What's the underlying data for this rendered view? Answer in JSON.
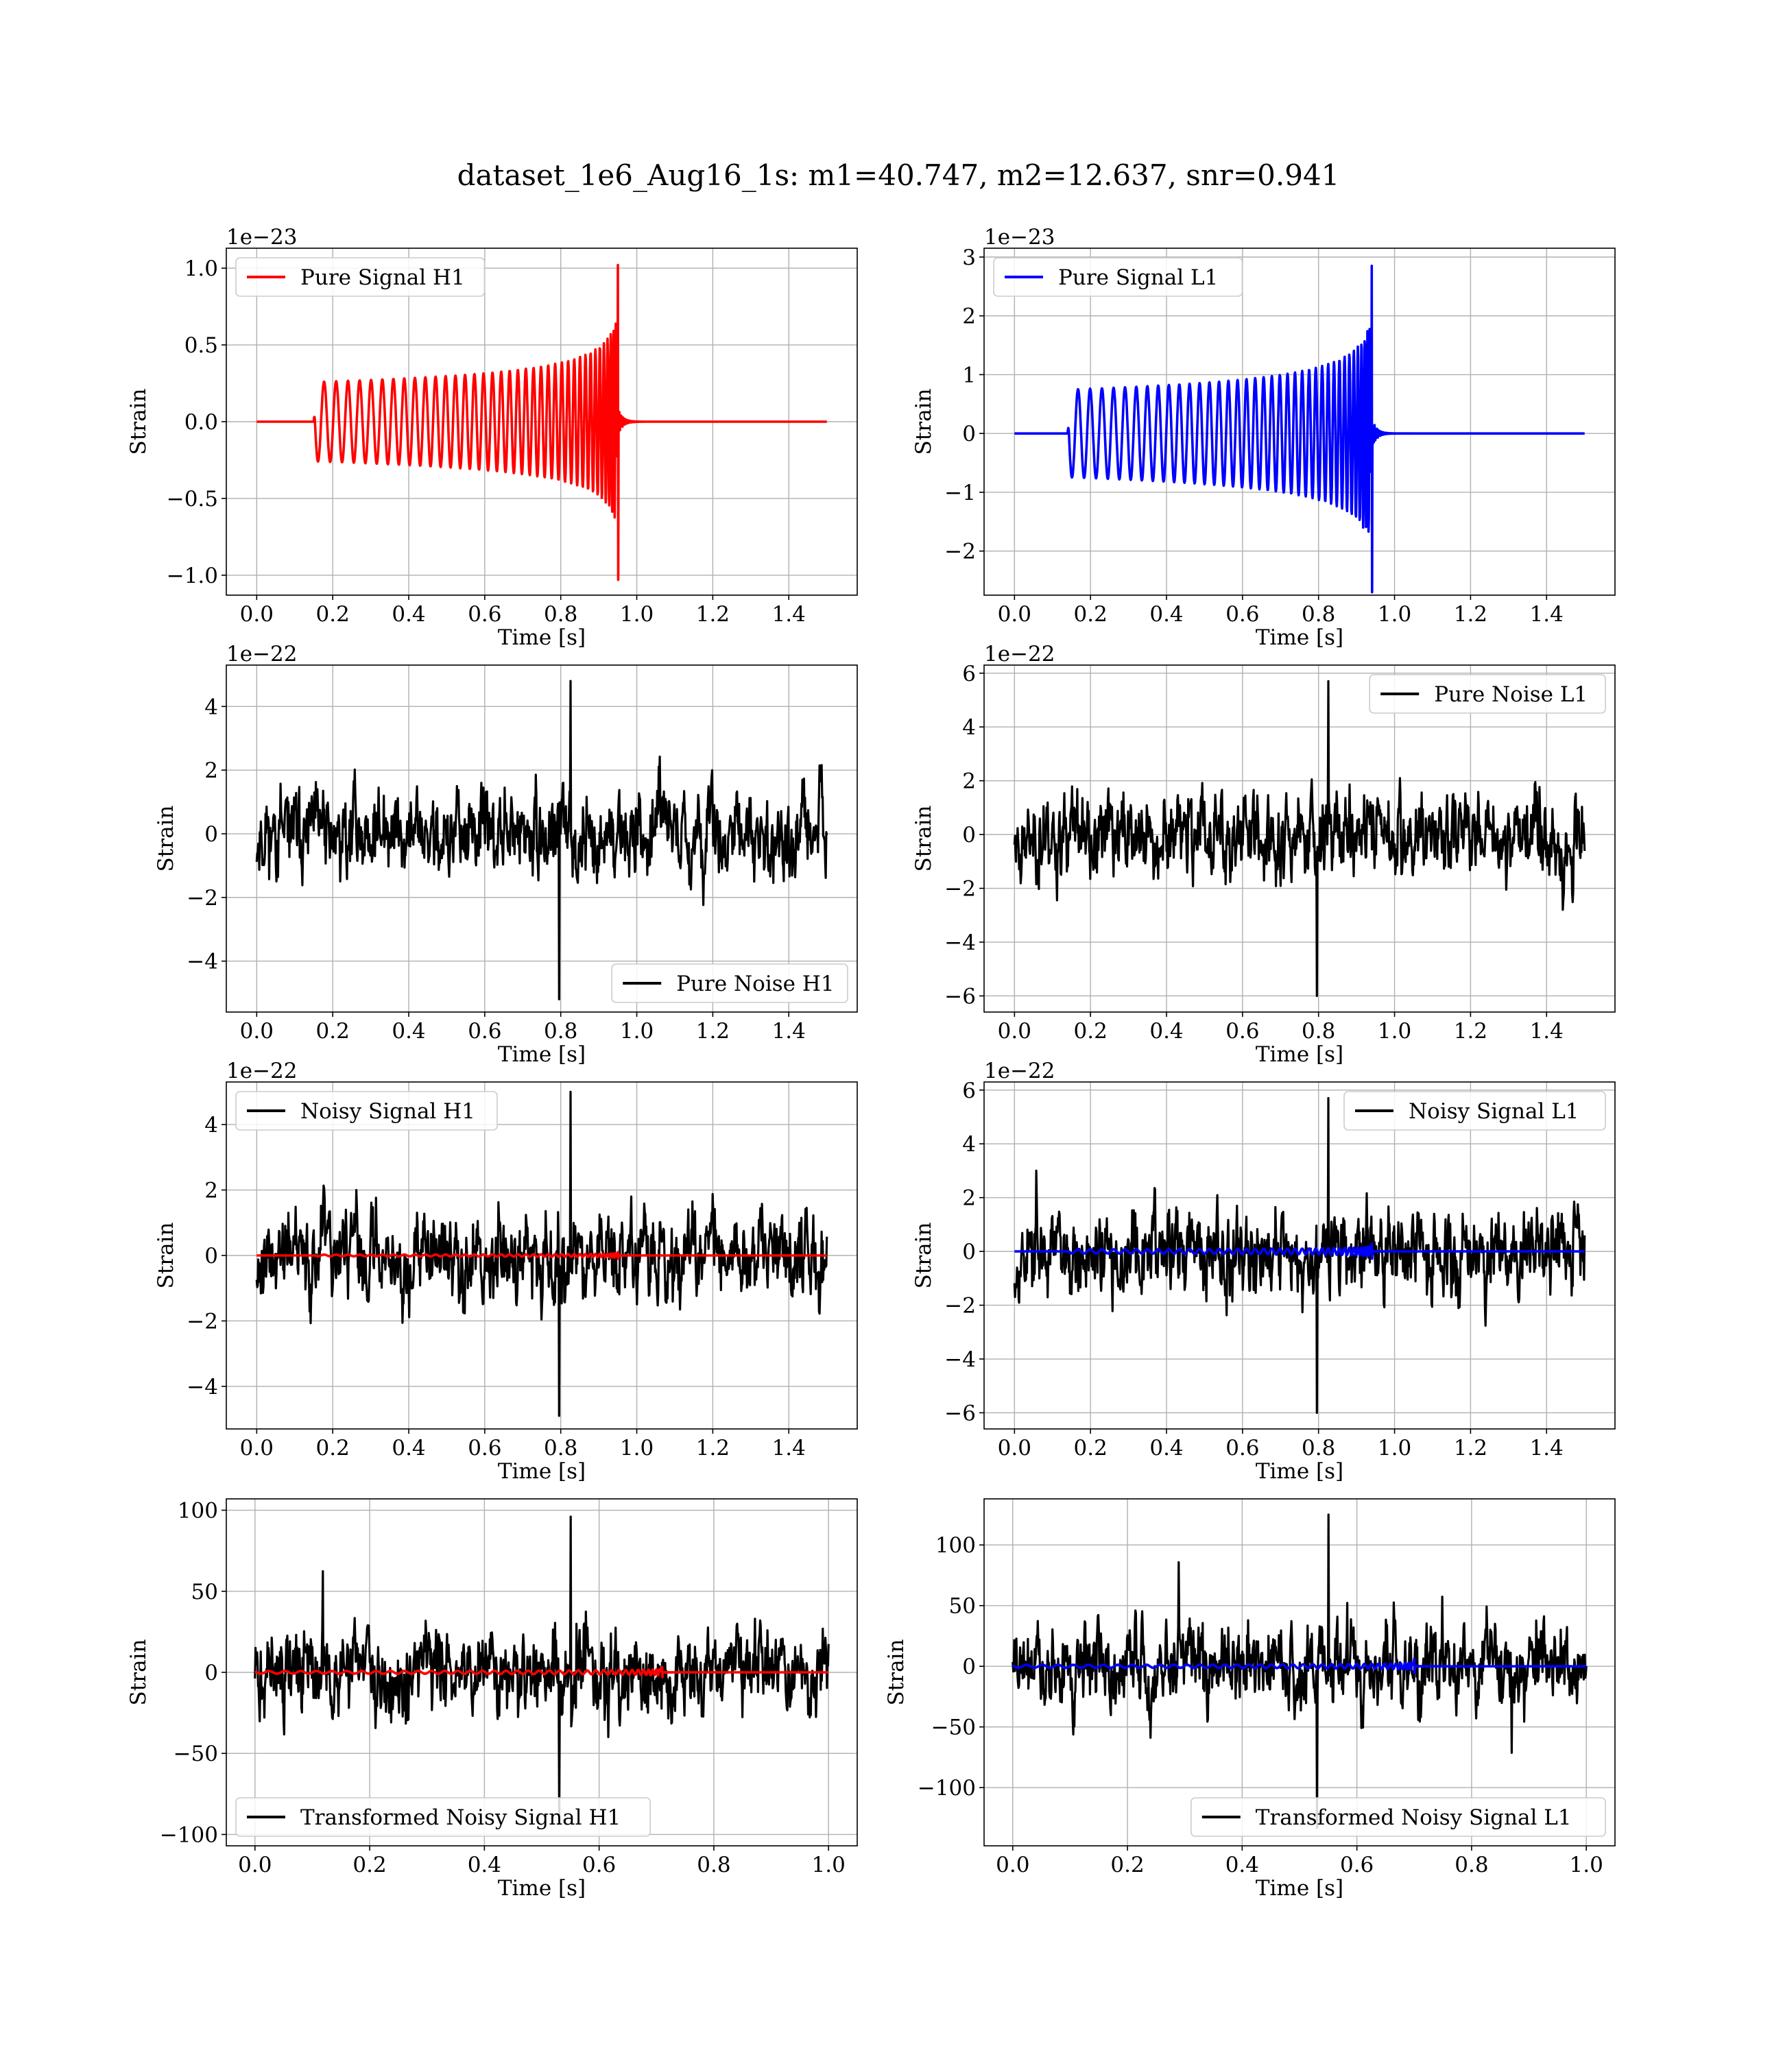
{
  "figure": {
    "suptitle": "dataset_1e6_Aug16_1s: m1=40.747, m2=12.637, snr=0.941"
  },
  "chart_data": [
    {
      "type": "line",
      "id": "pure-signal-h1",
      "xlabel": "Time [s]",
      "ylabel": "Strain",
      "offset_text": "1e−23",
      "xlim": [
        -0.08,
        1.58
      ],
      "ylim": [
        -1.13,
        1.13
      ],
      "xticks": [
        0.0,
        0.2,
        0.4,
        0.6,
        0.8,
        1.0,
        1.2,
        1.4
      ],
      "xticklabels": [
        "0.0",
        "0.2",
        "0.4",
        "0.6",
        "0.8",
        "1.0",
        "1.2",
        "1.4"
      ],
      "yticks": [
        -1.0,
        -0.5,
        0.0,
        0.5,
        1.0
      ],
      "yticklabels": [
        "−1.0",
        "−0.5",
        "0.0",
        "0.5",
        "1.0"
      ],
      "grid": true,
      "legend_loc": "upper-left",
      "series": [
        {
          "name": "Pure Signal H1",
          "color": "#ff0000",
          "kind": "chirp",
          "legend": true,
          "t_start": 0.15,
          "t_merge": 0.95,
          "t_end": 1.5,
          "amp_start": 0.26,
          "amp_peak": 1.02,
          "amp_min_peak": -1.03
        }
      ]
    },
    {
      "type": "line",
      "id": "pure-signal-l1",
      "xlabel": "Time [s]",
      "ylabel": "Strain",
      "offset_text": "1e−23",
      "xlim": [
        -0.08,
        1.58
      ],
      "ylim": [
        -2.75,
        3.15
      ],
      "xticks": [
        0.0,
        0.2,
        0.4,
        0.6,
        0.8,
        1.0,
        1.2,
        1.4
      ],
      "xticklabels": [
        "0.0",
        "0.2",
        "0.4",
        "0.6",
        "0.8",
        "1.0",
        "1.2",
        "1.4"
      ],
      "yticks": [
        -2,
        -1,
        0,
        1,
        2,
        3
      ],
      "yticklabels": [
        "−2",
        "−1",
        "0",
        "1",
        "2",
        "3"
      ],
      "grid": true,
      "legend_loc": "upper-left",
      "series": [
        {
          "name": "Pure Signal L1",
          "color": "#0000ff",
          "kind": "chirp",
          "legend": true,
          "t_start": 0.14,
          "t_merge": 0.94,
          "t_end": 1.5,
          "amp_start": 0.75,
          "amp_peak": 2.85,
          "amp_min_peak": -2.7
        }
      ]
    },
    {
      "type": "line",
      "id": "pure-noise-h1",
      "xlabel": "Time [s]",
      "ylabel": "Strain",
      "offset_text": "1e−22",
      "xlim": [
        -0.08,
        1.58
      ],
      "ylim": [
        -5.6,
        5.3
      ],
      "xticks": [
        0.0,
        0.2,
        0.4,
        0.6,
        0.8,
        1.0,
        1.2,
        1.4
      ],
      "xticklabels": [
        "0.0",
        "0.2",
        "0.4",
        "0.6",
        "0.8",
        "1.0",
        "1.2",
        "1.4"
      ],
      "yticks": [
        -4,
        -2,
        0,
        2,
        4
      ],
      "yticklabels": [
        "−4",
        "−2",
        "0",
        "2",
        "4"
      ],
      "grid": true,
      "legend_loc": "lower-right",
      "series": [
        {
          "name": "Pure Noise H1",
          "color": "#000000",
          "kind": "noise",
          "legend": true,
          "t_start": 0.0,
          "t_end": 1.5,
          "max": 4.8,
          "min": -5.2,
          "seed": 11
        }
      ]
    },
    {
      "type": "line",
      "id": "pure-noise-l1",
      "xlabel": "Time [s]",
      "ylabel": "Strain",
      "offset_text": "1e−22",
      "xlim": [
        -0.08,
        1.58
      ],
      "ylim": [
        -6.6,
        6.3
      ],
      "xticks": [
        0.0,
        0.2,
        0.4,
        0.6,
        0.8,
        1.0,
        1.2,
        1.4
      ],
      "xticklabels": [
        "0.0",
        "0.2",
        "0.4",
        "0.6",
        "0.8",
        "1.0",
        "1.2",
        "1.4"
      ],
      "yticks": [
        -6,
        -4,
        -2,
        0,
        2,
        4,
        6
      ],
      "yticklabels": [
        "−6",
        "−4",
        "−2",
        "0",
        "2",
        "4",
        "6"
      ],
      "grid": true,
      "legend_loc": "upper-right",
      "series": [
        {
          "name": "Pure Noise L1",
          "color": "#000000",
          "kind": "noise",
          "legend": true,
          "t_start": 0.0,
          "t_end": 1.5,
          "max": 5.7,
          "min": -6.0,
          "seed": 23
        }
      ]
    },
    {
      "type": "line",
      "id": "noisy-signal-h1",
      "xlabel": "Time [s]",
      "ylabel": "Strain",
      "offset_text": "1e−22",
      "xlim": [
        -0.08,
        1.58
      ],
      "ylim": [
        -5.3,
        5.3
      ],
      "xticks": [
        0.0,
        0.2,
        0.4,
        0.6,
        0.8,
        1.0,
        1.2,
        1.4
      ],
      "xticklabels": [
        "0.0",
        "0.2",
        "0.4",
        "0.6",
        "0.8",
        "1.0",
        "1.2",
        "1.4"
      ],
      "yticks": [
        -4,
        -2,
        0,
        2,
        4
      ],
      "yticklabels": [
        "−4",
        "−2",
        "0",
        "2",
        "4"
      ],
      "grid": true,
      "legend_loc": "upper-left",
      "series": [
        {
          "name": "Noisy Signal H1",
          "color": "#000000",
          "kind": "noise",
          "legend": true,
          "t_start": 0.0,
          "t_end": 1.5,
          "max": 5.0,
          "min": -4.9,
          "seed": 37
        },
        {
          "name": "",
          "color": "#ff0000",
          "kind": "chirp",
          "legend": false,
          "t_start": 0.15,
          "t_merge": 0.95,
          "t_end": 1.5,
          "amp_start": 0.026,
          "amp_peak": 0.102,
          "amp_min_peak": -0.103
        }
      ]
    },
    {
      "type": "line",
      "id": "noisy-signal-l1",
      "xlabel": "Time [s]",
      "ylabel": "Strain",
      "offset_text": "1e−22",
      "xlim": [
        -0.08,
        1.58
      ],
      "ylim": [
        -6.6,
        6.3
      ],
      "xticks": [
        0.0,
        0.2,
        0.4,
        0.6,
        0.8,
        1.0,
        1.2,
        1.4
      ],
      "xticklabels": [
        "0.0",
        "0.2",
        "0.4",
        "0.6",
        "0.8",
        "1.0",
        "1.2",
        "1.4"
      ],
      "yticks": [
        -6,
        -4,
        -2,
        0,
        2,
        4,
        6
      ],
      "yticklabels": [
        "−6",
        "−4",
        "−2",
        "0",
        "2",
        "4",
        "6"
      ],
      "grid": true,
      "legend_loc": "upper-right",
      "series": [
        {
          "name": "Noisy Signal L1",
          "color": "#000000",
          "kind": "noise",
          "legend": true,
          "t_start": 0.0,
          "t_end": 1.5,
          "max": 5.7,
          "min": -6.0,
          "seed": 53
        },
        {
          "name": "",
          "color": "#0000ff",
          "kind": "chirp",
          "legend": false,
          "t_start": 0.14,
          "t_merge": 0.94,
          "t_end": 1.5,
          "amp_start": 0.075,
          "amp_peak": 0.285,
          "amp_min_peak": -0.27
        }
      ]
    },
    {
      "type": "line",
      "id": "transformed-noisy-signal-h1",
      "xlabel": "Time [s]",
      "ylabel": "Strain",
      "offset_text": "",
      "xlim": [
        -0.05,
        1.05
      ],
      "ylim": [
        -107,
        107
      ],
      "xticks": [
        0.0,
        0.2,
        0.4,
        0.6,
        0.8,
        1.0
      ],
      "xticklabels": [
        "0.0",
        "0.2",
        "0.4",
        "0.6",
        "0.8",
        "1.0"
      ],
      "yticks": [
        -100,
        -50,
        0,
        50,
        100
      ],
      "yticklabels": [
        "−100",
        "−50",
        "0",
        "50",
        "100"
      ],
      "grid": true,
      "legend_loc": "lower-left",
      "series": [
        {
          "name": "Transformed Noisy Signal H1",
          "color": "#000000",
          "kind": "noise",
          "legend": true,
          "t_start": 0.0,
          "t_end": 1.0,
          "max": 96,
          "min": -91,
          "seed": 71
        },
        {
          "name": "",
          "color": "#ff0000",
          "kind": "chirp",
          "legend": false,
          "t_start": 0.0,
          "t_merge": 0.71,
          "t_end": 1.0,
          "amp_start": 0.8,
          "amp_peak": 3.2,
          "amp_min_peak": -3.0
        }
      ]
    },
    {
      "type": "line",
      "id": "transformed-noisy-signal-l1",
      "xlabel": "Time [s]",
      "ylabel": "Strain",
      "offset_text": "",
      "xlim": [
        -0.05,
        1.05
      ],
      "ylim": [
        -148,
        138
      ],
      "xticks": [
        0.0,
        0.2,
        0.4,
        0.6,
        0.8,
        1.0
      ],
      "xticklabels": [
        "0.0",
        "0.2",
        "0.4",
        "0.6",
        "0.8",
        "1.0"
      ],
      "yticks": [
        -100,
        -50,
        0,
        50,
        100
      ],
      "yticklabels": [
        "−100",
        "−50",
        "0",
        "50",
        "100"
      ],
      "grid": true,
      "legend_loc": "lower-right",
      "series": [
        {
          "name": "Transformed Noisy Signal L1",
          "color": "#000000",
          "kind": "noise",
          "legend": true,
          "t_start": 0.0,
          "t_end": 1.0,
          "max": 125,
          "min": -133,
          "seed": 89
        },
        {
          "name": "",
          "color": "#0000ff",
          "kind": "chirp",
          "legend": false,
          "t_start": 0.0,
          "t_merge": 0.7,
          "t_end": 1.0,
          "amp_start": 1.2,
          "amp_peak": 6.0,
          "amp_min_peak": -5.5
        }
      ]
    }
  ]
}
